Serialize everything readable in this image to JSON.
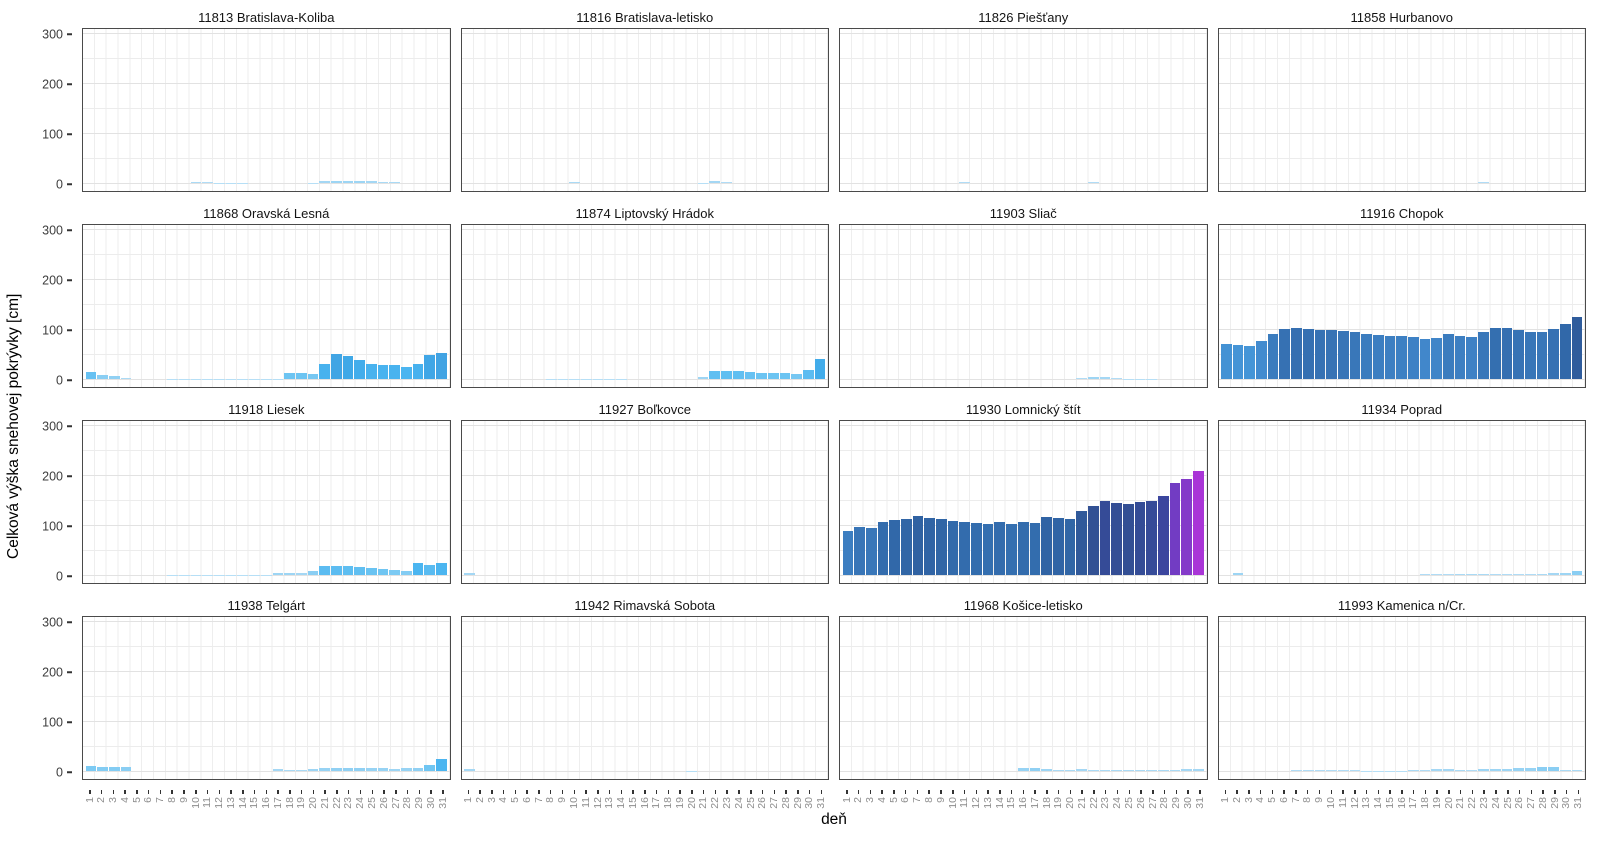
{
  "chart_data": {
    "type": "bar",
    "title": "",
    "xlabel": "deň",
    "ylabel": "Celková výška snehovej pokrývky [cm]",
    "x": [
      1,
      2,
      3,
      4,
      5,
      6,
      7,
      8,
      9,
      10,
      11,
      12,
      13,
      14,
      15,
      16,
      17,
      18,
      19,
      20,
      21,
      22,
      23,
      24,
      25,
      26,
      27,
      28,
      29,
      30,
      31
    ],
    "ylim": [
      0,
      312
    ],
    "yticks": [
      0,
      100,
      200,
      300
    ],
    "grid": "minor vertical per day, horizontal every 50 cm",
    "legend": "none",
    "facet_layout": {
      "rows": 4,
      "cols": 4
    },
    "color_mapping": "bar fill encodes snow depth: light blue (low) through steel/dark blue to purple/magenta (high)",
    "color_stops": [
      [
        0,
        "#BCE1F7"
      ],
      [
        4,
        "#A4D7F4"
      ],
      [
        12,
        "#6FC5F2"
      ],
      [
        25,
        "#4BB5F0"
      ],
      [
        45,
        "#3FA9E8"
      ],
      [
        65,
        "#4697D9"
      ],
      [
        80,
        "#4187CB"
      ],
      [
        95,
        "#3876B8"
      ],
      [
        110,
        "#3168A9"
      ],
      [
        125,
        "#2F5C9C"
      ],
      [
        140,
        "#325093"
      ],
      [
        155,
        "#38479B"
      ],
      [
        170,
        "#4840AC"
      ],
      [
        182,
        "#6B3DC0"
      ],
      [
        195,
        "#8B39CC"
      ],
      [
        210,
        "#AB35D8"
      ]
    ],
    "facets": [
      {
        "station": "11813 Bratislava-Koliba",
        "values": [
          0,
          0,
          0,
          0,
          0,
          0,
          0,
          0,
          0,
          3,
          2,
          1,
          1,
          1,
          0,
          0,
          0,
          0,
          0,
          1,
          4,
          5,
          5,
          5,
          4,
          3,
          3,
          0,
          0,
          0,
          0
        ]
      },
      {
        "station": "11816 Bratislava-letisko",
        "values": [
          0,
          0,
          0,
          0,
          0,
          0,
          0,
          0,
          0,
          3,
          0,
          0,
          0,
          0,
          0,
          0,
          0,
          0,
          0,
          0,
          1,
          4,
          2,
          0,
          0,
          0,
          0,
          0,
          0,
          0,
          0
        ]
      },
      {
        "station": "11826 Piešťany",
        "values": [
          0,
          0,
          0,
          0,
          0,
          0,
          0,
          0,
          0,
          0,
          2,
          0,
          0,
          0,
          0,
          0,
          0,
          0,
          0,
          0,
          0,
          2,
          0,
          0,
          0,
          0,
          0,
          0,
          0,
          0,
          0
        ]
      },
      {
        "station": "11858 Hurbanovo",
        "values": [
          0,
          0,
          0,
          0,
          0,
          0,
          0,
          0,
          0,
          0,
          0,
          0,
          0,
          0,
          0,
          0,
          0,
          0,
          0,
          0,
          0,
          0,
          2,
          0,
          0,
          0,
          0,
          0,
          0,
          0,
          0
        ]
      },
      {
        "station": "11868 Oravská Lesná",
        "values": [
          15,
          8,
          7,
          3,
          0,
          0,
          0,
          1,
          1,
          1,
          1,
          1,
          1,
          1,
          1,
          1,
          1,
          13,
          13,
          11,
          30,
          50,
          46,
          38,
          30,
          28,
          28,
          25,
          31,
          48,
          52
        ]
      },
      {
        "station": "11874 Liptovský Hrádok",
        "values": [
          0,
          0,
          0,
          0,
          0,
          0,
          0,
          1,
          1,
          1,
          1,
          1,
          1,
          1,
          0,
          0,
          0,
          0,
          0,
          0,
          5,
          17,
          17,
          17,
          15,
          13,
          13,
          13,
          11,
          19,
          40
        ]
      },
      {
        "station": "11903 Sliač",
        "values": [
          0,
          0,
          0,
          0,
          0,
          0,
          0,
          0,
          0,
          0,
          0,
          0,
          0,
          0,
          0,
          0,
          0,
          0,
          0,
          0,
          2,
          5,
          4,
          2,
          1,
          1,
          1,
          0,
          0,
          0,
          0
        ]
      },
      {
        "station": "11916 Chopok",
        "values": [
          70,
          68,
          67,
          76,
          90,
          100,
          102,
          101,
          99,
          98,
          96,
          94,
          90,
          88,
          87,
          86,
          85,
          80,
          82,
          90,
          87,
          85,
          94,
          103,
          102,
          98,
          95,
          94,
          100,
          110,
          125
        ]
      },
      {
        "station": "11918 Liesek",
        "values": [
          0,
          0,
          0,
          0,
          0,
          0,
          0,
          1,
          1,
          1,
          1,
          1,
          1,
          1,
          1,
          1,
          5,
          5,
          4,
          8,
          19,
          19,
          18,
          17,
          14,
          12,
          10,
          9,
          25,
          20,
          25
        ]
      },
      {
        "station": "11927 Boľkovce",
        "values": [
          4,
          0,
          0,
          0,
          0,
          0,
          0,
          0,
          0,
          0,
          0,
          0,
          0,
          0,
          0,
          0,
          0,
          0,
          0,
          0,
          0,
          0,
          0,
          0,
          0,
          0,
          0,
          0,
          0,
          0,
          0
        ]
      },
      {
        "station": "11930 Lomnický štít",
        "values": [
          88,
          96,
          94,
          106,
          110,
          113,
          118,
          115,
          113,
          108,
          106,
          105,
          103,
          106,
          103,
          106,
          105,
          116,
          115,
          113,
          129,
          139,
          148,
          144,
          142,
          146,
          149,
          158,
          185,
          192,
          209
        ]
      },
      {
        "station": "11934 Poprad",
        "values": [
          0,
          5,
          0,
          0,
          0,
          0,
          0,
          0,
          0,
          0,
          0,
          0,
          0,
          0,
          0,
          0,
          0,
          2,
          2,
          2,
          3,
          3,
          3,
          2,
          2,
          2,
          2,
          3,
          4,
          5,
          8
        ]
      },
      {
        "station": "11938 Telgárt",
        "values": [
          10,
          9,
          9,
          8,
          0,
          0,
          0,
          0,
          0,
          0,
          0,
          0,
          0,
          0,
          0,
          0,
          4,
          3,
          3,
          5,
          6,
          7,
          7,
          7,
          6,
          6,
          5,
          6,
          7,
          12,
          25
        ]
      },
      {
        "station": "11942 Rimavská Sobota",
        "values": [
          4,
          0,
          0,
          0,
          0,
          0,
          0,
          0,
          0,
          0,
          0,
          0,
          0,
          0,
          0,
          0,
          0,
          0,
          0,
          1,
          0,
          0,
          0,
          0,
          0,
          0,
          0,
          0,
          0,
          0,
          0
        ]
      },
      {
        "station": "11968 Košice-letisko",
        "values": [
          0,
          0,
          0,
          0,
          0,
          0,
          0,
          0,
          0,
          0,
          0,
          0,
          0,
          0,
          0,
          6,
          7,
          5,
          3,
          3,
          4,
          3,
          3,
          3,
          3,
          3,
          3,
          3,
          3,
          4,
          4
        ]
      },
      {
        "station": "11993 Kamenica n/Cr.",
        "values": [
          0,
          0,
          0,
          0,
          0,
          0,
          2,
          2,
          2,
          2,
          2,
          2,
          1,
          1,
          1,
          1,
          3,
          2,
          4,
          4,
          3,
          2,
          5,
          5,
          5,
          6,
          6,
          8,
          8,
          3,
          3
        ]
      }
    ]
  }
}
